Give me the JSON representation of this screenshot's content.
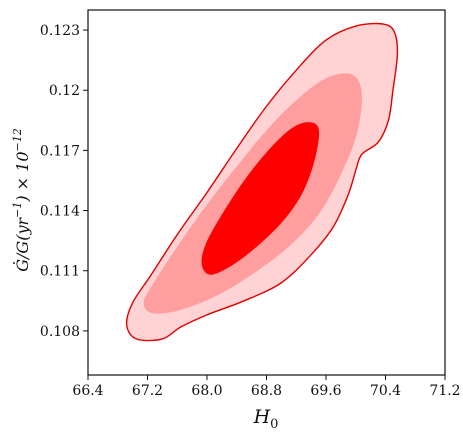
{
  "chart_data": {
    "type": "contour",
    "xlabel": "H_0",
    "ylabel": "Ġ/G(yr^-1) × 10^-12",
    "xlim": [
      66.4,
      71.2
    ],
    "ylim": [
      0.1058,
      0.124
    ],
    "x_ticks": [
      "66.4",
      "67.2",
      "68.0",
      "68.8",
      "69.6",
      "70.4",
      "71.2"
    ],
    "y_ticks": [
      "0.108",
      "0.111",
      "0.114",
      "0.117",
      "0.12",
      "0.123"
    ],
    "grid": false,
    "legend": "none",
    "colors": {
      "outer_fill": "#ffd3d3",
      "middle_fill": "#ff9e9e",
      "inner_fill": "#ff0000",
      "outer_line": "#e00000"
    },
    "contours": [
      {
        "level": "outer",
        "points": [
          [
            66.92,
            0.1083
          ],
          [
            67.0,
            0.1094
          ],
          [
            67.25,
            0.1108
          ],
          [
            67.6,
            0.1128
          ],
          [
            68.0,
            0.1149
          ],
          [
            68.4,
            0.1171
          ],
          [
            68.8,
            0.1192
          ],
          [
            69.2,
            0.121
          ],
          [
            69.6,
            0.1225
          ],
          [
            70.0,
            0.1232
          ],
          [
            70.37,
            0.1233
          ],
          [
            70.52,
            0.1229
          ],
          [
            70.56,
            0.1218
          ],
          [
            70.5,
            0.12
          ],
          [
            70.44,
            0.1185
          ],
          [
            70.3,
            0.1174
          ],
          [
            70.08,
            0.1168
          ],
          [
            70.0,
            0.116
          ],
          [
            69.9,
            0.1148
          ],
          [
            69.7,
            0.1132
          ],
          [
            69.4,
            0.1118
          ],
          [
            69.0,
            0.1104
          ],
          [
            68.5,
            0.1095
          ],
          [
            68.0,
            0.1088
          ],
          [
            67.65,
            0.1082
          ],
          [
            67.4,
            0.1076
          ],
          [
            67.05,
            0.1076
          ],
          [
            66.92,
            0.1083
          ]
        ]
      },
      {
        "level": "middle",
        "points": [
          [
            67.15,
            0.1094
          ],
          [
            67.25,
            0.1102
          ],
          [
            67.6,
            0.1122
          ],
          [
            68.0,
            0.1143
          ],
          [
            68.4,
            0.1162
          ],
          [
            68.8,
            0.118
          ],
          [
            69.2,
            0.1195
          ],
          [
            69.6,
            0.1206
          ],
          [
            69.94,
            0.1208
          ],
          [
            70.08,
            0.1199
          ],
          [
            70.02,
            0.1179
          ],
          [
            69.8,
            0.1158
          ],
          [
            69.5,
            0.1138
          ],
          [
            69.1,
            0.1122
          ],
          [
            68.6,
            0.1108
          ],
          [
            68.1,
            0.1097
          ],
          [
            67.6,
            0.109
          ],
          [
            67.25,
            0.1089
          ],
          [
            67.15,
            0.1094
          ]
        ]
      },
      {
        "level": "inner",
        "points": [
          [
            67.93,
            0.1113
          ],
          [
            67.98,
            0.1123
          ],
          [
            68.2,
            0.1138
          ],
          [
            68.5,
            0.1155
          ],
          [
            68.8,
            0.1169
          ],
          [
            69.1,
            0.118
          ],
          [
            69.34,
            0.1184
          ],
          [
            69.5,
            0.1181
          ],
          [
            69.46,
            0.1167
          ],
          [
            69.3,
            0.115
          ],
          [
            69.05,
            0.1136
          ],
          [
            68.7,
            0.1123
          ],
          [
            68.35,
            0.1113
          ],
          [
            68.05,
            0.1108
          ],
          [
            67.93,
            0.1113
          ]
        ]
      }
    ]
  }
}
